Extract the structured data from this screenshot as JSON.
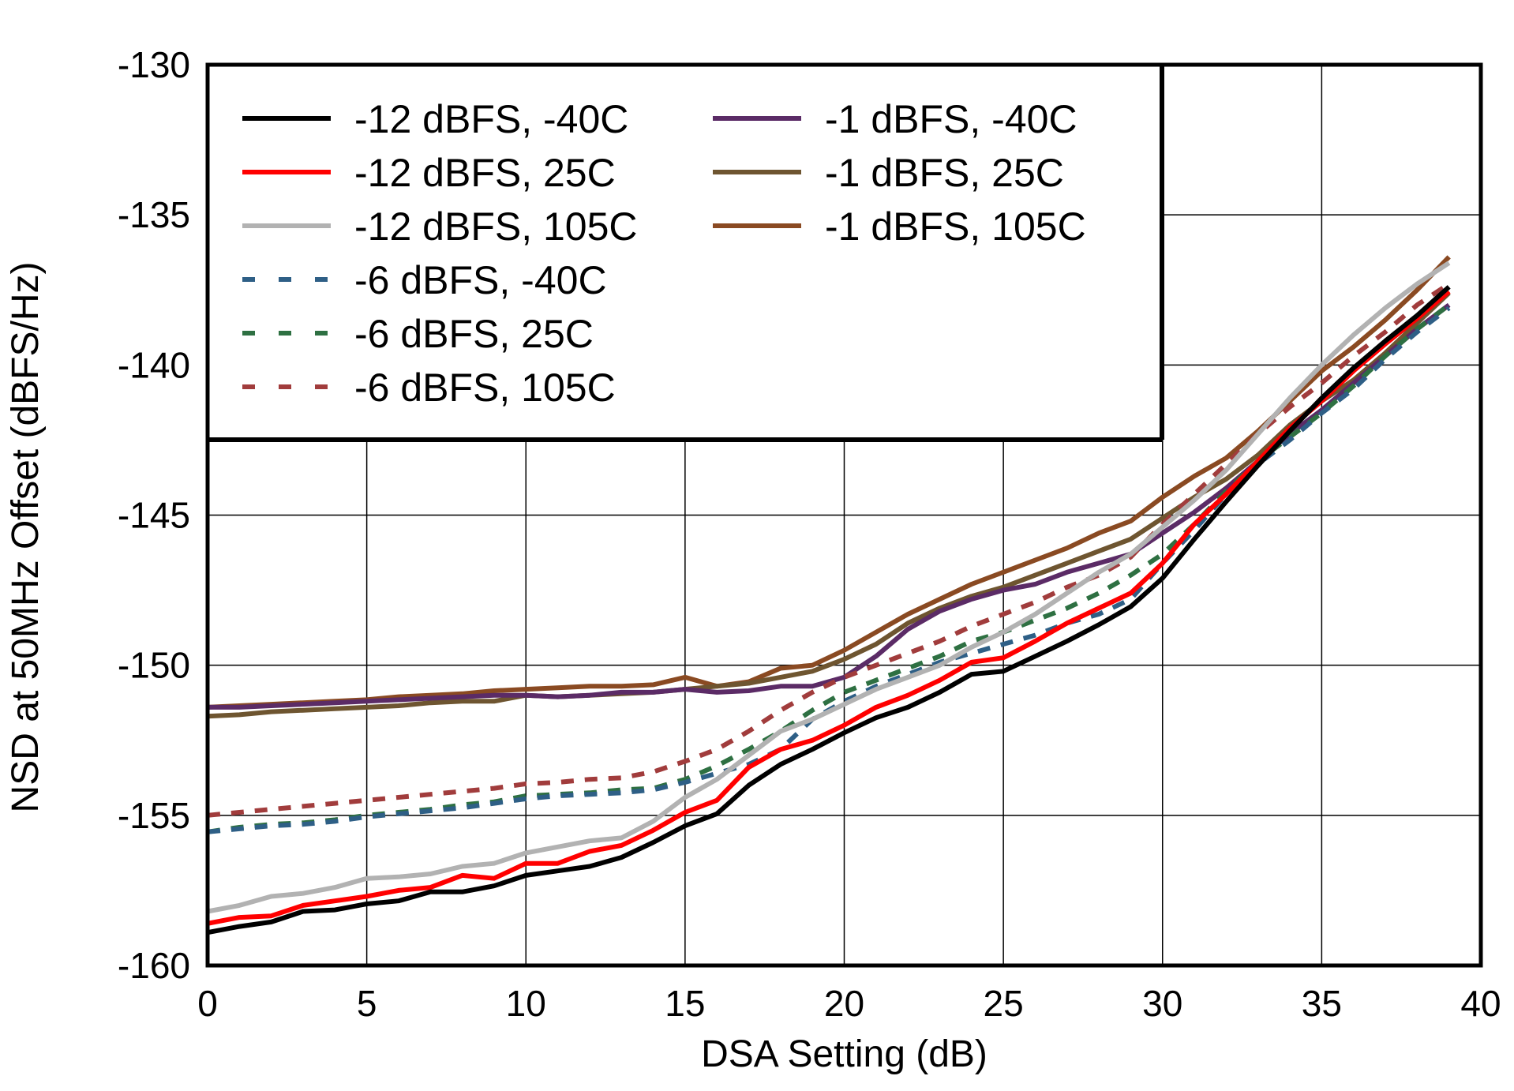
{
  "chart_data": {
    "type": "line",
    "title": "",
    "xlabel": "DSA Setting (dB)",
    "ylabel": "NSD at 50MHz Offset (dBFS/Hz)",
    "xlim": [
      0,
      40
    ],
    "ylim": [
      -160,
      -130
    ],
    "xticks": [
      "0",
      "5",
      "10",
      "15",
      "20",
      "25",
      "30",
      "35",
      "40"
    ],
    "yticks": [
      "-130",
      "-135",
      "-140",
      "-145",
      "-150",
      "-155",
      "-160"
    ],
    "grid": true,
    "legend_position": "top-left",
    "x": [
      0,
      1,
      2,
      3,
      4,
      5,
      6,
      7,
      8,
      9,
      10,
      11,
      12,
      13,
      14,
      15,
      16,
      17,
      18,
      19,
      20,
      21,
      22,
      23,
      24,
      25,
      26,
      27,
      28,
      29,
      30,
      31,
      32,
      33,
      34,
      35,
      36,
      37,
      38,
      39
    ],
    "series": [
      {
        "name": "-12 dBFS, -40C",
        "color": "#000000",
        "dash": "solid",
        "values": [
          -158.9,
          -158.7,
          -158.55,
          -158.2,
          -158.15,
          -157.95,
          -157.85,
          -157.55,
          -157.55,
          -157.35,
          -157.0,
          -156.85,
          -156.7,
          -156.4,
          -155.9,
          -155.35,
          -154.95,
          -154.0,
          -153.3,
          -152.8,
          -152.25,
          -151.75,
          -151.4,
          -150.9,
          -150.3,
          -150.2,
          -149.7,
          -149.2,
          -148.65,
          -148.05,
          -147.1,
          -145.8,
          -144.55,
          -143.35,
          -142.2,
          -141.1,
          -140.1,
          -139.2,
          -138.35,
          -137.4
        ]
      },
      {
        "name": "-12 dBFS, 25C",
        "color": "#ff0000",
        "dash": "solid",
        "values": [
          -158.6,
          -158.4,
          -158.35,
          -158.0,
          -157.85,
          -157.7,
          -157.5,
          -157.4,
          -157.0,
          -157.1,
          -156.6,
          -156.6,
          -156.2,
          -156.0,
          -155.5,
          -154.9,
          -154.5,
          -153.4,
          -152.8,
          -152.5,
          -152.0,
          -151.4,
          -151.0,
          -150.5,
          -149.9,
          -149.75,
          -149.2,
          -148.6,
          -148.1,
          -147.6,
          -146.6,
          -145.3,
          -144.3,
          -143.2,
          -142.1,
          -141.2,
          -140.2,
          -139.3,
          -138.45,
          -137.55
        ]
      },
      {
        "name": "-12 dBFS, 105C",
        "color": "#b2b2b2",
        "dash": "solid",
        "values": [
          -158.2,
          -158.0,
          -157.7,
          -157.6,
          -157.4,
          -157.1,
          -157.05,
          -156.95,
          -156.7,
          -156.6,
          -156.25,
          -156.05,
          -155.85,
          -155.75,
          -155.2,
          -154.4,
          -153.8,
          -153.0,
          -152.2,
          -151.8,
          -151.3,
          -150.8,
          -150.4,
          -150.0,
          -149.4,
          -148.9,
          -148.3,
          -147.6,
          -146.9,
          -146.3,
          -145.4,
          -144.5,
          -143.5,
          -142.3,
          -141.1,
          -140.0,
          -139.0,
          -138.1,
          -137.3,
          -136.6
        ]
      },
      {
        "name": "-6 dBFS, -40C",
        "color": "#2e5f86",
        "dash": "dashed",
        "values": [
          -155.55,
          -155.45,
          -155.35,
          -155.3,
          -155.2,
          -155.05,
          -154.95,
          -154.85,
          -154.75,
          -154.6,
          -154.45,
          -154.35,
          -154.3,
          -154.25,
          -154.15,
          -153.9,
          -153.6,
          -153.3,
          -152.8,
          -151.8,
          -151.2,
          -150.7,
          -150.3,
          -149.9,
          -149.6,
          -149.3,
          -149.0,
          -148.6,
          -148.3,
          -147.8,
          -146.6,
          -145.5,
          -144.3,
          -143.3,
          -142.5,
          -141.6,
          -140.8,
          -139.8,
          -138.9,
          -138.1
        ]
      },
      {
        "name": "-6 dBFS, 25C",
        "color": "#2e7042",
        "dash": "dashed",
        "values": [
          -155.55,
          -155.4,
          -155.3,
          -155.25,
          -155.15,
          -155.0,
          -154.9,
          -154.8,
          -154.65,
          -154.55,
          -154.35,
          -154.3,
          -154.25,
          -154.15,
          -154.1,
          -153.8,
          -153.35,
          -152.8,
          -152.2,
          -151.5,
          -150.9,
          -150.5,
          -150.1,
          -149.7,
          -149.2,
          -148.9,
          -148.5,
          -148.1,
          -147.6,
          -147.0,
          -146.3,
          -145.3,
          -144.2,
          -143.2,
          -142.4,
          -141.6,
          -140.7,
          -139.7,
          -138.8,
          -138.0
        ]
      },
      {
        "name": "-6 dBFS, 105C",
        "color": "#a13c3c",
        "dash": "dashed",
        "values": [
          -155.0,
          -154.9,
          -154.8,
          -154.7,
          -154.6,
          -154.5,
          -154.4,
          -154.3,
          -154.2,
          -154.1,
          -153.95,
          -153.9,
          -153.8,
          -153.75,
          -153.55,
          -153.2,
          -152.8,
          -152.2,
          -151.5,
          -150.9,
          -150.4,
          -150.0,
          -149.6,
          -149.2,
          -148.7,
          -148.3,
          -147.9,
          -147.4,
          -147.0,
          -146.4,
          -145.3,
          -144.3,
          -143.3,
          -142.3,
          -141.4,
          -140.6,
          -139.7,
          -138.9,
          -138.0,
          -137.3
        ]
      },
      {
        "name": "-1 dBFS, -40C",
        "color": "#5b2b66",
        "dash": "solid",
        "values": [
          -151.4,
          -151.4,
          -151.35,
          -151.3,
          -151.25,
          -151.2,
          -151.15,
          -151.1,
          -151.05,
          -151.0,
          -151.0,
          -151.05,
          -151.0,
          -150.9,
          -150.9,
          -150.8,
          -150.9,
          -150.85,
          -150.7,
          -150.7,
          -150.4,
          -149.7,
          -148.8,
          -148.2,
          -147.8,
          -147.5,
          -147.3,
          -146.9,
          -146.6,
          -146.3,
          -145.6,
          -144.9,
          -144.1,
          -143.2,
          -142.3,
          -141.5,
          -140.6,
          -139.7,
          -138.8,
          -138.0
        ]
      },
      {
        "name": "-1 dBFS, 25C",
        "color": "#6e5530",
        "dash": "solid",
        "values": [
          -151.7,
          -151.65,
          -151.55,
          -151.5,
          -151.45,
          -151.4,
          -151.35,
          -151.25,
          -151.2,
          -151.2,
          -151.0,
          -151.05,
          -151.0,
          -150.95,
          -150.9,
          -150.8,
          -150.7,
          -150.6,
          -150.4,
          -150.2,
          -149.8,
          -149.3,
          -148.6,
          -148.1,
          -147.7,
          -147.4,
          -147.0,
          -146.6,
          -146.2,
          -145.8,
          -145.1,
          -144.4,
          -143.8,
          -143.0,
          -142.0,
          -141.2,
          -140.5,
          -139.6,
          -138.6,
          -137.6
        ]
      },
      {
        "name": "-1 dBFS, 105C",
        "color": "#8a4a22",
        "dash": "solid",
        "values": [
          -151.4,
          -151.35,
          -151.3,
          -151.25,
          -151.2,
          -151.15,
          -151.05,
          -151.0,
          -150.95,
          -150.85,
          -150.8,
          -150.75,
          -150.7,
          -150.7,
          -150.65,
          -150.4,
          -150.7,
          -150.55,
          -150.1,
          -150.0,
          -149.5,
          -148.9,
          -148.3,
          -147.8,
          -147.3,
          -146.9,
          -146.5,
          -146.1,
          -145.6,
          -145.2,
          -144.4,
          -143.7,
          -143.1,
          -142.2,
          -141.2,
          -140.2,
          -139.4,
          -138.5,
          -137.5,
          -136.4
        ]
      }
    ]
  }
}
